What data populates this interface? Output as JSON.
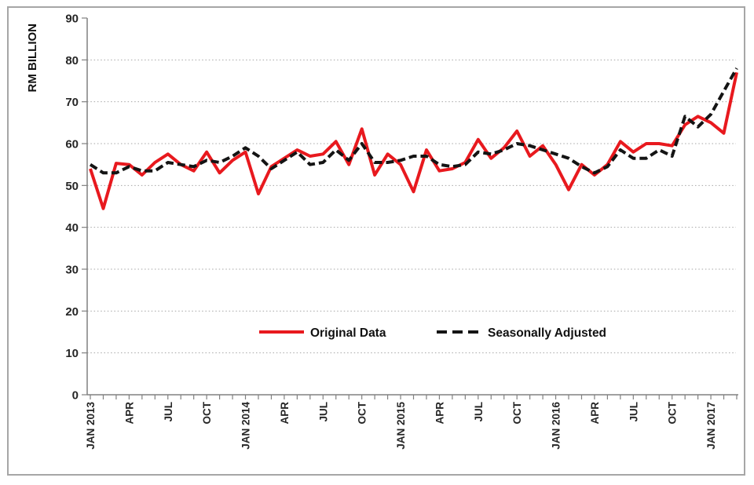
{
  "chart_data": {
    "type": "line",
    "title": "",
    "xlabel": "",
    "ylabel": "RM BILLION",
    "ylim": [
      0,
      90
    ],
    "y_ticks": [
      0,
      10,
      20,
      30,
      40,
      50,
      60,
      70,
      80,
      90
    ],
    "grid": true,
    "legend_position": "bottom-center-inside",
    "x": [
      "JAN 2013",
      "FEB 2013",
      "MAR 2013",
      "APR 2013",
      "MAY 2013",
      "JUN 2013",
      "JUL 2013",
      "AUG 2013",
      "SEP 2013",
      "OCT 2013",
      "NOV 2013",
      "DEC 2013",
      "JAN 2014",
      "FEB 2014",
      "MAR 2014",
      "APR 2014",
      "MAY 2014",
      "JUN 2014",
      "JUL 2014",
      "AUG 2014",
      "SEP 2014",
      "OCT 2014",
      "NOV 2014",
      "DEC 2014",
      "JAN 2015",
      "FEB 2015",
      "MAR 2015",
      "APR 2015",
      "MAY 2015",
      "JUN 2015",
      "JUL 2015",
      "AUG 2015",
      "SEP 2015",
      "OCT 2015",
      "NOV 2015",
      "DEC 2015",
      "JAN 2016",
      "FEB 2016",
      "MAR 2016",
      "APR 2016",
      "MAY 2016",
      "JUN 2016",
      "JUL 2016",
      "AUG 2016",
      "SEP 2016",
      "OCT 2016",
      "NOV 2016",
      "DEC 2016",
      "JAN 2017",
      "FEB 2017",
      "MAR 2017"
    ],
    "x_tick_labels": [
      {
        "i": 0,
        "label": "JAN 2013"
      },
      {
        "i": 3,
        "label": "APR"
      },
      {
        "i": 6,
        "label": "JUL"
      },
      {
        "i": 9,
        "label": "OCT"
      },
      {
        "i": 12,
        "label": "JAN 2014"
      },
      {
        "i": 15,
        "label": "APR"
      },
      {
        "i": 18,
        "label": "JUL"
      },
      {
        "i": 21,
        "label": "OCT"
      },
      {
        "i": 24,
        "label": "JAN 2015"
      },
      {
        "i": 27,
        "label": "APR"
      },
      {
        "i": 30,
        "label": "JUL"
      },
      {
        "i": 33,
        "label": "OCT"
      },
      {
        "i": 36,
        "label": "JAN 2016"
      },
      {
        "i": 39,
        "label": "APR"
      },
      {
        "i": 42,
        "label": "JUL"
      },
      {
        "i": 45,
        "label": "OCT"
      },
      {
        "i": 48,
        "label": "JAN 2017"
      }
    ],
    "series": [
      {
        "name": "Original Data",
        "style": "solid",
        "color": "#e8191e",
        "values": [
          54,
          44.5,
          55.3,
          55,
          52.5,
          55.5,
          57.5,
          55,
          53.5,
          58,
          53,
          56,
          58,
          48,
          54.5,
          56.5,
          58.5,
          57,
          57.5,
          60.5,
          55,
          63.5,
          52.5,
          57.5,
          55,
          48.5,
          58.5,
          53.5,
          54,
          55.5,
          61,
          56.5,
          59,
          63,
          57,
          59.5,
          55,
          49,
          55,
          52.5,
          55,
          60.5,
          58,
          60,
          60,
          59.5,
          64.5,
          66.5,
          65,
          62.5,
          77
        ]
      },
      {
        "name": "Seasonally Adjusted",
        "style": "dashed",
        "color": "#141414",
        "values": [
          55,
          53,
          53,
          54.5,
          53.5,
          53.5,
          55.5,
          55,
          54.5,
          56,
          55.5,
          57,
          59,
          57,
          54,
          56,
          58,
          55,
          55.5,
          58.5,
          56,
          60,
          55.5,
          55.5,
          56,
          57,
          57,
          55,
          54.5,
          55,
          58,
          57.5,
          58.5,
          60,
          59.5,
          58.5,
          57.5,
          56.5,
          54.5,
          53,
          54.5,
          58.5,
          56.5,
          56.5,
          58.5,
          57,
          66.5,
          64,
          67,
          72.5,
          78
        ]
      }
    ],
    "colors": {
      "axis": "#808080",
      "gridline": "#a6a6a6",
      "tick_text": "#262626",
      "border": "#a6a6a6"
    }
  }
}
